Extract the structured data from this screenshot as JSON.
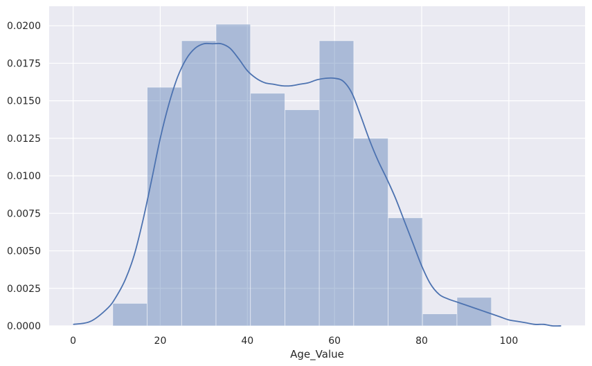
{
  "chart_data": {
    "type": "histogram",
    "xlabel": "Age_Value",
    "ylabel": "",
    "title": "",
    "xlim": [
      -5.5,
      117.5
    ],
    "ylim": [
      0,
      0.0213
    ],
    "xticks": [
      0,
      20,
      40,
      60,
      80,
      100
    ],
    "xtick_labels": [
      "0",
      "20",
      "40",
      "60",
      "80",
      "100"
    ],
    "yticks": [
      0,
      0.0025,
      0.005,
      0.0075,
      0.01,
      0.0125,
      0.015,
      0.0175,
      0.02
    ],
    "ytick_labels": [
      "0.0000",
      "0.0025",
      "0.0050",
      "0.0075",
      "0.0100",
      "0.0125",
      "0.0150",
      "0.0175",
      "0.0200"
    ],
    "grid": true,
    "colors": {
      "background": "#eaeaf2",
      "grid": "#ffffff",
      "bar_fill": "#4c72b0",
      "bar_opacity": 0.4,
      "kde_line": "#4c72b0"
    },
    "bins": {
      "edges": [
        9.1,
        17.0,
        24.9,
        32.8,
        40.7,
        48.6,
        56.5,
        64.4,
        72.3,
        80.2,
        88.1,
        96.0
      ],
      "density": [
        0.0015,
        0.0159,
        0.019,
        0.0201,
        0.0155,
        0.0144,
        0.019,
        0.0125,
        0.0072,
        0.0008,
        0.0019
      ]
    },
    "kde": {
      "x": [
        0,
        4,
        8,
        10,
        12,
        14,
        16,
        18,
        20,
        22,
        24,
        26,
        28,
        30,
        32,
        34,
        36,
        38,
        40,
        42,
        44,
        46,
        48,
        50,
        52,
        54,
        56,
        58,
        60,
        62,
        64,
        66,
        68,
        70,
        72,
        74,
        76,
        78,
        80,
        82,
        84,
        86,
        88,
        90,
        92,
        94,
        96,
        98,
        100,
        102,
        104,
        106,
        108,
        110,
        112
      ],
      "y": [
        0.0001,
        0.0003,
        0.0012,
        0.002,
        0.0031,
        0.0047,
        0.007,
        0.0097,
        0.0125,
        0.0148,
        0.0166,
        0.0178,
        0.0185,
        0.0188,
        0.0188,
        0.0188,
        0.0185,
        0.0178,
        0.017,
        0.0165,
        0.0162,
        0.0161,
        0.016,
        0.016,
        0.0161,
        0.0162,
        0.0164,
        0.0165,
        0.0165,
        0.0163,
        0.0155,
        0.014,
        0.0124,
        0.011,
        0.0098,
        0.0085,
        0.007,
        0.0055,
        0.004,
        0.0028,
        0.0021,
        0.0018,
        0.0016,
        0.0014,
        0.0012,
        0.001,
        0.0008,
        0.0006,
        0.0004,
        0.0003,
        0.0002,
        0.0001,
        0.0001,
        0.0,
        0.0
      ]
    }
  }
}
